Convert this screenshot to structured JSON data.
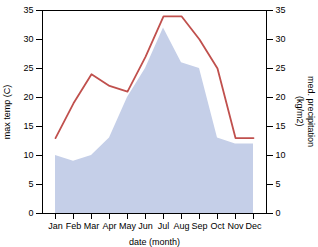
{
  "chart_data": {
    "type": "line",
    "categories": [
      "Jan",
      "Feb",
      "Mar",
      "Apr",
      "May",
      "Jun",
      "Jul",
      "Aug",
      "Sep",
      "Oct",
      "Nov",
      "Dec"
    ],
    "xlabel": "date (month)",
    "ylabel": "max temp (C)",
    "y2label": "med. precipitation\n(kg/m2)",
    "ylim": [
      0,
      35
    ],
    "yticks": [
      0,
      5,
      10,
      15,
      20,
      25,
      30,
      35
    ],
    "y2lim": [
      0,
      35
    ],
    "y2ticks": [
      0,
      5,
      10,
      15,
      20,
      25,
      30,
      35
    ],
    "grid": false,
    "series": [
      {
        "type": "area",
        "axis": "y2",
        "color": "#c5cfe8",
        "values": [
          10,
          9,
          10,
          13,
          20,
          25,
          32,
          26,
          25,
          13,
          12,
          12
        ]
      },
      {
        "type": "line",
        "color": "#c0504d",
        "values": [
          13,
          19,
          24,
          22,
          21,
          27,
          34,
          34,
          30,
          25,
          13,
          13
        ]
      }
    ]
  }
}
